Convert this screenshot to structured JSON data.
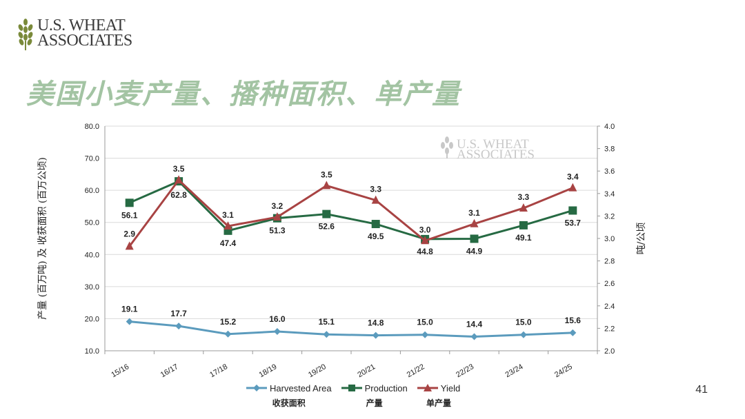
{
  "header": {
    "logo_line1": "U.S. WHEAT",
    "logo_line2": "ASSOCIATES",
    "title": "美国小麦产量、播种面积、单产量"
  },
  "page_number": "41",
  "watermark": {
    "line1": "U.S. WHEAT",
    "line2": "ASSOCIATES"
  },
  "colors": {
    "title": "#a3c4a3",
    "harvested": "#5b9bbd",
    "production": "#266a43",
    "yield": "#a84343",
    "grid": "#d9d9d9"
  },
  "chart_data": {
    "type": "line",
    "categories": [
      "15/16",
      "16/17",
      "17/18",
      "18/19",
      "19/20",
      "20/21",
      "21/22",
      "22/23",
      "23/24",
      "24/25"
    ],
    "left_axis": {
      "label": "产量 (百万吨) 及 收获面积 (百万公顷)",
      "range": [
        10,
        80
      ],
      "ticks": [
        "10.0",
        "20.0",
        "30.0",
        "40.0",
        "50.0",
        "60.0",
        "70.0",
        "80.0"
      ]
    },
    "right_axis": {
      "label": "吨/公顷",
      "range": [
        2.0,
        4.0
      ],
      "ticks": [
        "2.0",
        "2.2",
        "2.4",
        "2.6",
        "2.8",
        "3.0",
        "3.2",
        "3.4",
        "3.6",
        "3.8",
        "4.0"
      ]
    },
    "series": [
      {
        "name": "Harvested Area",
        "name_cn": "收获面积",
        "axis": "left",
        "marker": "diamond",
        "color": "#5b9bbd",
        "values": [
          19.1,
          17.7,
          15.2,
          16.0,
          15.1,
          14.8,
          15.0,
          14.4,
          15.0,
          15.6
        ],
        "labels": [
          "19.1",
          "17.7",
          "15.2",
          "16.0",
          "15.1",
          "14.8",
          "15.0",
          "14.4",
          "15.0",
          "15.6"
        ]
      },
      {
        "name": "Production",
        "name_cn": "产量",
        "axis": "left",
        "marker": "square",
        "color": "#266a43",
        "values": [
          56.1,
          62.8,
          47.4,
          51.3,
          52.6,
          49.5,
          44.8,
          44.9,
          49.1,
          53.7
        ],
        "labels": [
          "56.1",
          "62.8",
          "47.4",
          "51.3",
          "52.6",
          "49.5",
          "44.8",
          "44.9",
          "49.1",
          "53.7"
        ]
      },
      {
        "name": "Yield",
        "name_cn": "单产量",
        "axis": "right",
        "marker": "triangle",
        "color": "#a84343",
        "values": [
          2.93,
          3.52,
          3.11,
          3.19,
          3.47,
          3.34,
          2.98,
          3.13,
          3.27,
          3.45
        ],
        "labels": [
          "2.9",
          "3.5",
          "3.1",
          "3.2",
          "3.5",
          "3.3",
          "3.0",
          "3.1",
          "3.3",
          "3.4"
        ]
      }
    ]
  }
}
